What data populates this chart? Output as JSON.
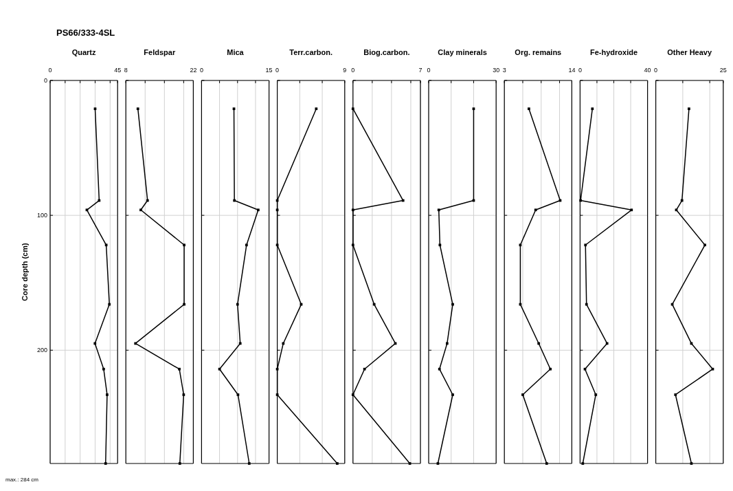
{
  "chart_data": [
    {
      "type": "line",
      "title": "PS66/333-4SL",
      "xlabel": "Quartz",
      "ylabel": "Core depth (cm)",
      "annotations": [
        "max.: 284 cm"
      ],
      "xlim": [
        0,
        45
      ],
      "xticks": [
        0,
        {
          "value": 10,
          "label": null
        },
        {
          "value": 20,
          "label": null
        },
        {
          "value": 30,
          "label": null
        },
        {
          "value": 40,
          "label": null
        },
        45
      ],
      "ylim": [
        284,
        0
      ],
      "yticks": [
        0,
        100,
        200
      ],
      "grid": true,
      "marker": "square",
      "line_style": "solid",
      "series": [
        {
          "color": "#000000",
          "x": [
            30,
            32.7,
            24.5,
            37.4,
            39.5,
            29.9,
            35.7,
            38,
            37
          ],
          "values": [
            21,
            89,
            96,
            122,
            166,
            195,
            214,
            233,
            284
          ]
        }
      ]
    },
    {
      "type": "line",
      "xlabel": "Feldspar",
      "xlim": [
        8,
        22
      ],
      "xticks": [
        8,
        {
          "value": 12,
          "label": null
        },
        {
          "value": 16,
          "label": null
        },
        {
          "value": 20,
          "label": null
        },
        22
      ],
      "ylim": [
        284,
        0
      ],
      "yticks": [
        0,
        100,
        200
      ],
      "grid": true,
      "marker": "square",
      "line_style": "solid",
      "tick_labels": "x",
      "series": [
        {
          "color": "#000000",
          "x": [
            10.5,
            12.5,
            11.1,
            20.1,
            20.1,
            10,
            19.1,
            20,
            19.2
          ],
          "values": [
            21,
            89,
            96,
            122,
            166,
            195,
            214,
            233,
            284
          ]
        }
      ]
    },
    {
      "type": "line",
      "xlabel": "Mica",
      "xlim": [
        0,
        15
      ],
      "xticks": [
        0,
        {
          "value": 4,
          "label": null
        },
        {
          "value": 8,
          "label": null
        },
        {
          "value": 12,
          "label": null
        },
        15
      ],
      "ylim": [
        284,
        0
      ],
      "yticks": [
        0,
        100,
        200
      ],
      "grid": true,
      "marker": "square",
      "line_style": "solid",
      "tick_labels": "x",
      "series": [
        {
          "color": "#000000",
          "x": [
            7.2,
            7.3,
            12.6,
            10,
            8,
            8.6,
            4,
            8.1,
            10.6
          ],
          "values": [
            21,
            89,
            96,
            122,
            166,
            195,
            214,
            233,
            284
          ]
        }
      ]
    },
    {
      "type": "line",
      "xlabel": "Terr.carbon.",
      "xlim": [
        0,
        9
      ],
      "xticks": [
        0,
        {
          "value": 3,
          "label": null
        },
        {
          "value": 6,
          "label": null
        },
        9
      ],
      "ylim": [
        284,
        0
      ],
      "yticks": [
        0,
        100,
        200
      ],
      "grid": true,
      "marker": "square",
      "line_style": "solid",
      "tick_labels": "x",
      "series": [
        {
          "color": "#000000",
          "x": [
            5.2,
            0,
            0,
            0,
            3.2,
            0.8,
            0,
            0,
            8
          ],
          "values": [
            21,
            89,
            96,
            122,
            166,
            195,
            214,
            233,
            284
          ]
        }
      ]
    },
    {
      "type": "line",
      "xlabel": "Biog.carbon.",
      "xlim": [
        0,
        7
      ],
      "xticks": [
        0,
        {
          "value": 2,
          "label": null
        },
        {
          "value": 4,
          "label": null
        },
        {
          "value": 6,
          "label": null
        },
        7
      ],
      "ylim": [
        284,
        0
      ],
      "yticks": [
        0,
        100,
        200
      ],
      "grid": true,
      "marker": "square",
      "line_style": "solid",
      "tick_labels": "x",
      "series": [
        {
          "color": "#000000",
          "x": [
            0,
            5.2,
            0,
            0,
            2.2,
            4.4,
            1.2,
            0,
            5.9
          ],
          "values": [
            21,
            89,
            96,
            122,
            166,
            195,
            214,
            233,
            284
          ]
        }
      ]
    },
    {
      "type": "line",
      "xlabel": "Clay minerals",
      "xlim": [
        0,
        30
      ],
      "xticks": [
        0,
        {
          "value": 10,
          "label": null
        },
        {
          "value": 20,
          "label": null
        },
        30
      ],
      "ylim": [
        284,
        0
      ],
      "yticks": [
        0,
        100,
        200
      ],
      "grid": true,
      "marker": "square",
      "line_style": "solid",
      "tick_labels": "x",
      "series": [
        {
          "color": "#000000",
          "x": [
            20,
            20,
            4.5,
            5,
            10.7,
            8.2,
            4.8,
            10.7,
            4.1
          ],
          "values": [
            21,
            89,
            96,
            122,
            166,
            195,
            214,
            233,
            284
          ]
        }
      ]
    },
    {
      "type": "line",
      "xlabel": "Org. remains",
      "xlim": [
        3,
        14
      ],
      "xticks": [
        3,
        {
          "value": 6,
          "label": null
        },
        {
          "value": 9,
          "label": null
        },
        {
          "value": 12,
          "label": null
        },
        14
      ],
      "ylim": [
        284,
        0
      ],
      "yticks": [
        0,
        100,
        200
      ],
      "grid": true,
      "marker": "square",
      "line_style": "solid",
      "tick_labels": "x",
      "series": [
        {
          "color": "#000000",
          "x": [
            7,
            12.1,
            8.1,
            5.6,
            5.6,
            8.6,
            10.5,
            6,
            9.9
          ],
          "values": [
            21,
            89,
            96,
            122,
            166,
            195,
            214,
            233,
            284
          ]
        }
      ]
    },
    {
      "type": "line",
      "xlabel": "Fe-hydroxide",
      "xlim": [
        0,
        40
      ],
      "xticks": [
        0,
        {
          "value": 10,
          "label": null
        },
        {
          "value": 20,
          "label": null
        },
        {
          "value": 30,
          "label": null
        },
        40
      ],
      "ylim": [
        284,
        0
      ],
      "yticks": [
        0,
        100,
        200
      ],
      "grid": true,
      "marker": "square",
      "line_style": "solid",
      "tick_labels": "x",
      "series": [
        {
          "color": "#000000",
          "x": [
            7.3,
            0.3,
            30.5,
            3.2,
            3.8,
            16,
            2.9,
            9.3,
            1.6
          ],
          "values": [
            21,
            89,
            96,
            122,
            166,
            195,
            214,
            233,
            284
          ]
        }
      ]
    },
    {
      "type": "line",
      "xlabel": "Other Heavy",
      "xlim": [
        0,
        25
      ],
      "xticks": [
        0,
        {
          "value": 10,
          "label": null
        },
        {
          "value": 20,
          "label": null
        },
        25
      ],
      "ylim": [
        284,
        0
      ],
      "yticks": [
        0,
        100,
        200
      ],
      "grid": true,
      "marker": "square",
      "line_style": "solid",
      "tick_labels": "x",
      "series": [
        {
          "color": "#000000",
          "x": [
            12.3,
            9.7,
            7.6,
            18.2,
            6.1,
            13.2,
            21.1,
            7.3,
            13.2
          ],
          "values": [
            21,
            89,
            96,
            122,
            166,
            195,
            214,
            233,
            284
          ]
        }
      ]
    }
  ]
}
